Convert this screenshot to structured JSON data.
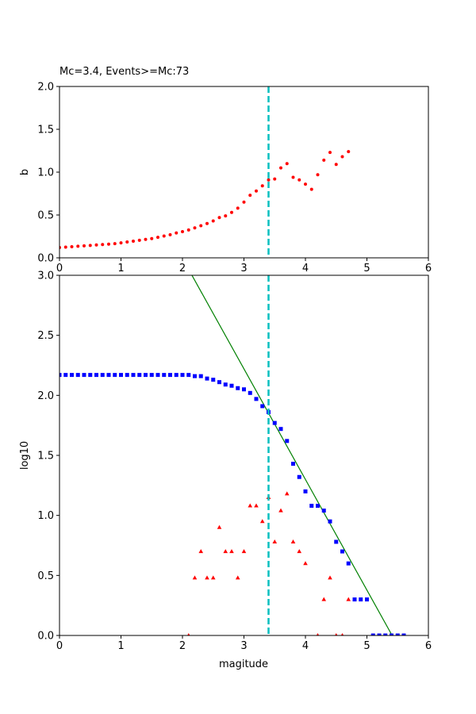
{
  "chart_data": [
    {
      "type": "scatter",
      "title": "Mc=3.4, Events>=Mc:73",
      "xlabel": "",
      "ylabel": "b",
      "xlim": [
        0,
        6
      ],
      "ylim": [
        0,
        2.0
      ],
      "xticks": [
        "0",
        "1",
        "2",
        "3",
        "4",
        "5",
        "6"
      ],
      "yticks": [
        "0.0",
        "0.5",
        "1.0",
        "1.5",
        "2.0"
      ],
      "mc": 3.4,
      "colors": {
        "b_points": "#ff0000",
        "mc_line": "#00bfbf"
      },
      "series": [
        {
          "x": [
            0.0,
            0.1,
            0.2,
            0.3,
            0.4,
            0.5,
            0.6,
            0.7,
            0.8,
            0.9,
            1.0,
            1.1,
            1.2,
            1.3,
            1.4,
            1.5,
            1.6,
            1.7,
            1.8,
            1.9,
            2.0,
            2.1,
            2.2,
            2.3,
            2.4,
            2.5,
            2.6,
            2.7,
            2.8,
            2.9,
            3.0,
            3.1,
            3.2,
            3.3,
            3.4,
            3.5,
            3.6,
            3.7,
            3.8,
            3.9,
            4.0,
            4.1,
            4.2,
            4.3,
            4.4,
            4.5,
            4.6,
            4.7
          ],
          "y": [
            0.12,
            0.125,
            0.13,
            0.135,
            0.14,
            0.145,
            0.15,
            0.155,
            0.16,
            0.165,
            0.175,
            0.185,
            0.195,
            0.205,
            0.215,
            0.225,
            0.24,
            0.255,
            0.27,
            0.29,
            0.305,
            0.325,
            0.35,
            0.375,
            0.4,
            0.43,
            0.47,
            0.49,
            0.53,
            0.58,
            0.65,
            0.73,
            0.78,
            0.84,
            0.91,
            0.92,
            1.05,
            1.1,
            0.94,
            0.91,
            0.86,
            0.8,
            0.97,
            1.14,
            1.23,
            1.09,
            1.18,
            1.24
          ]
        }
      ]
    },
    {
      "type": "scatter",
      "title": "",
      "xlabel": "magitude",
      "ylabel": "log10",
      "xlim": [
        0,
        6
      ],
      "ylim": [
        0,
        3.0
      ],
      "xticks": [
        "0",
        "1",
        "2",
        "3",
        "4",
        "5",
        "6"
      ],
      "yticks": [
        "0.0",
        "0.5",
        "1.0",
        "1.5",
        "2.0",
        "2.5",
        "3.0"
      ],
      "mc": 3.4,
      "colors": {
        "cumulative": "#0000ff",
        "noncumulative": "#ff0000",
        "fit": "#008000",
        "mc_line": "#00bfbf"
      },
      "fit_line": {
        "x": [
          2.1,
          5.41
        ],
        "y": [
          3.05,
          0.0
        ]
      },
      "series": [
        {
          "marker": "square",
          "x": [
            0.0,
            0.1,
            0.2,
            0.3,
            0.4,
            0.5,
            0.6,
            0.7,
            0.8,
            0.9,
            1.0,
            1.1,
            1.2,
            1.3,
            1.4,
            1.5,
            1.6,
            1.7,
            1.8,
            1.9,
            2.0,
            2.1,
            2.2,
            2.3,
            2.4,
            2.5,
            2.6,
            2.7,
            2.8,
            2.9,
            3.0,
            3.1,
            3.2,
            3.3,
            3.4,
            3.5,
            3.6,
            3.7,
            3.8,
            3.9,
            4.0,
            4.1,
            4.2,
            4.3,
            4.4,
            4.5,
            4.6,
            4.7,
            4.8,
            4.9,
            5.0,
            5.1,
            5.2,
            5.3,
            5.4,
            5.5,
            5.6
          ],
          "y": [
            2.17,
            2.17,
            2.17,
            2.17,
            2.17,
            2.17,
            2.17,
            2.17,
            2.17,
            2.17,
            2.17,
            2.17,
            2.17,
            2.17,
            2.17,
            2.17,
            2.17,
            2.17,
            2.17,
            2.17,
            2.17,
            2.17,
            2.16,
            2.16,
            2.14,
            2.13,
            2.11,
            2.09,
            2.08,
            2.06,
            2.05,
            2.02,
            1.97,
            1.91,
            1.86,
            1.77,
            1.72,
            1.62,
            1.43,
            1.32,
            1.2,
            1.08,
            1.08,
            1.04,
            0.95,
            0.78,
            0.7,
            0.6,
            0.3,
            0.3,
            0.3,
            0.0,
            0.0,
            0.0,
            0.0,
            0.0,
            0.0
          ]
        },
        {
          "marker": "triangle",
          "x": [
            2.1,
            2.2,
            2.3,
            2.4,
            2.5,
            2.6,
            2.7,
            2.8,
            2.9,
            3.0,
            3.1,
            3.2,
            3.3,
            3.4,
            3.5,
            3.6,
            3.7,
            3.8,
            3.9,
            4.0,
            4.2,
            4.3,
            4.4,
            4.5,
            4.6,
            4.7
          ],
          "y": [
            0.0,
            0.48,
            0.7,
            0.48,
            0.48,
            0.9,
            0.7,
            0.7,
            0.48,
            0.7,
            1.08,
            1.08,
            0.95,
            1.15,
            0.78,
            1.04,
            1.18,
            0.78,
            0.7,
            0.6,
            0.0,
            0.3,
            0.48,
            0.0,
            0.0,
            0.3
          ]
        }
      ]
    }
  ]
}
